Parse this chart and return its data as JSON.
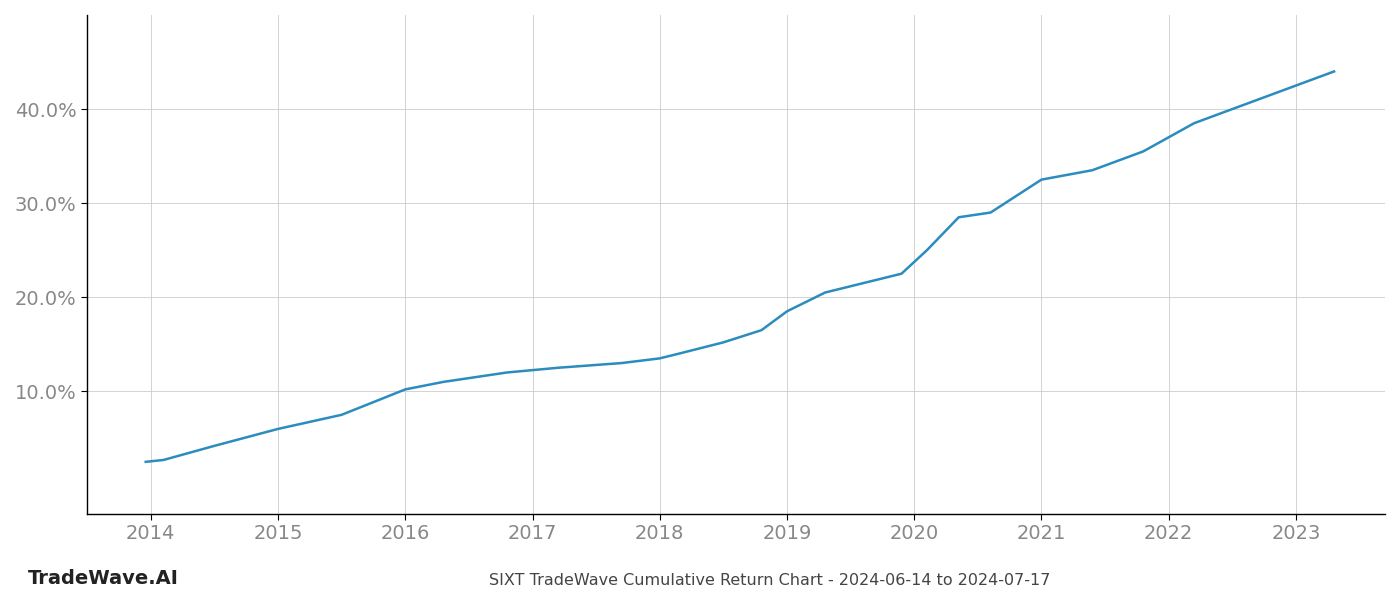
{
  "title": "SIXT TradeWave Cumulative Return Chart - 2024-06-14 to 2024-07-17",
  "watermark": "TradeWave.AI",
  "line_color": "#2b8cbe",
  "line_width": 1.8,
  "background_color": "#ffffff",
  "grid_color": "#cccccc",
  "x_years": [
    2013.96,
    2014.1,
    2014.5,
    2015.0,
    2015.5,
    2016.0,
    2016.3,
    2016.8,
    2017.2,
    2017.7,
    2018.0,
    2018.15,
    2018.5,
    2018.8,
    2019.0,
    2019.3,
    2019.6,
    2019.9,
    2020.1,
    2020.35,
    2020.6,
    2021.0,
    2021.4,
    2021.8,
    2022.2,
    2022.6,
    2022.9,
    2023.3
  ],
  "y_values": [
    2.5,
    2.7,
    4.2,
    6.0,
    7.5,
    10.2,
    11.0,
    12.0,
    12.5,
    13.0,
    13.5,
    14.0,
    15.2,
    16.5,
    18.5,
    20.5,
    21.5,
    22.5,
    25.0,
    28.5,
    29.0,
    32.5,
    33.5,
    35.5,
    38.5,
    40.5,
    42.0,
    44.0
  ],
  "xlim": [
    2013.5,
    2023.7
  ],
  "ylim": [
    -3,
    50
  ],
  "yticks": [
    10.0,
    20.0,
    30.0,
    40.0
  ],
  "xticks": [
    2014,
    2015,
    2016,
    2017,
    2018,
    2019,
    2020,
    2021,
    2022,
    2023
  ],
  "tick_label_fontsize": 14,
  "title_fontsize": 11.5,
  "watermark_fontsize": 14,
  "axis_label_color": "#888888",
  "spine_color": "#000000",
  "title_color": "#444444"
}
